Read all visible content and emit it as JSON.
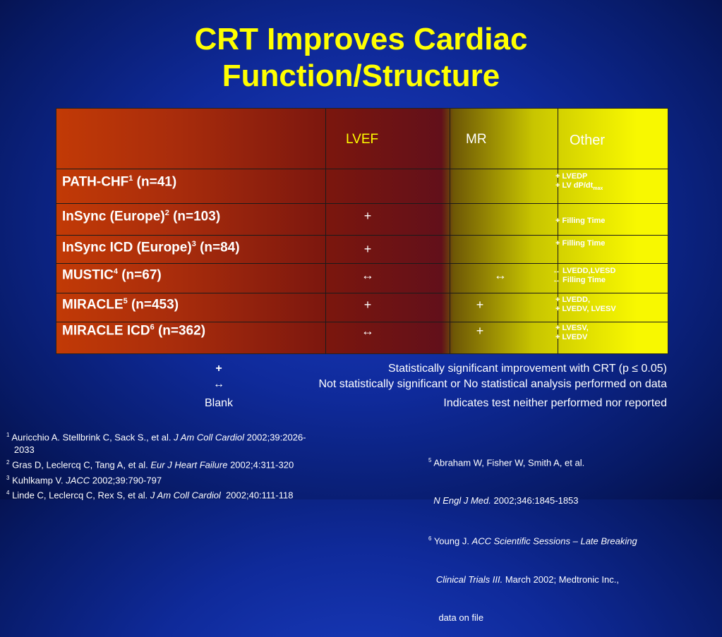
{
  "title_line1": "CRT Improves Cardiac",
  "title_line2": "Function/Structure",
  "table": {
    "headers": {
      "lvef": "LVEF",
      "mr": "MR",
      "other": "Other"
    },
    "rows": [
      {
        "name": "PATH-CHF",
        "sup": "1",
        "n": " (n=41)",
        "lvef": "",
        "mr": "",
        "other1": "+ LVEDP",
        "other2": "+ LV dP/dt",
        "other2_sub": "max"
      },
      {
        "name": "InSync (Europe)",
        "sup": "2",
        "n": " (n=103)",
        "lvef": "+",
        "mr": "",
        "other1": "+ Filling Time",
        "other2": ""
      },
      {
        "name": "InSync ICD (Europe)",
        "sup": "3",
        "n": " (n=84)",
        "lvef": "+",
        "mr": "",
        "other1": "+ Filling Time",
        "other2": ""
      },
      {
        "name": "MUSTIC",
        "sup": "4",
        "n": " (n=67)",
        "lvef": "↔",
        "mr": "↔",
        "other1": "↔ LVEDD,LVESD",
        "other2": "↔ Filling Time"
      },
      {
        "name": "MIRACLE",
        "sup": "5",
        "n": " (n=453)",
        "lvef": "+",
        "mr": "+",
        "other1": "+ LVEDD,",
        "other2": "+ LVEDV, LVESV"
      },
      {
        "name": "MIRACLE ICD",
        "sup": "6",
        "n": " (n=362)",
        "lvef": "↔",
        "mr": "+",
        "other1": "+ LVESV,",
        "other2": "+ LVEDV"
      }
    ]
  },
  "legend": [
    {
      "symbol": "+",
      "text": "Statistically significant improvement with CRT (p ≤ 0.05)"
    },
    {
      "symbol": "↔",
      "text": "Not statistically significant or No statistical analysis performed on data"
    },
    {
      "symbol": "Blank",
      "text": "Indicates test neither performed nor reported"
    }
  ],
  "refs_left": [
    {
      "sup": "1",
      "pre": " Auricchio A. Stellbrink C, Sack S., et al. ",
      "journal": "J Am Coll Cardiol",
      "post": " 2002;39:2026-"
    },
    {
      "sup": "",
      "pre": "   2033",
      "journal": "",
      "post": ""
    },
    {
      "sup": "2",
      "pre": " Gras D, Leclercq C, Tang A, et al. ",
      "journal": "Eur J Heart Failure",
      "post": " 2002;4:311-320"
    },
    {
      "sup": "3",
      "pre": " Kuhlkamp V. ",
      "journal": "JACC",
      "post": " 2002;39:790-797"
    },
    {
      "sup": "4",
      "pre": " Linde C, Leclercq C, Rex S, et al. ",
      "journal": "J Am Coll Cardiol",
      "post": "  2002;40:111-118"
    }
  ],
  "refs_right": [
    {
      "sup": "5",
      "pre": " Abraham W, Fisher W, Smith A, et al.",
      "journal": "",
      "post": ""
    },
    {
      "sup": "",
      "pre": "  ",
      "journal": "N Engl J Med.",
      "post": " 2002;346:1845-1853"
    },
    {
      "sup": "6",
      "pre": " Young J. ",
      "journal": "ACC Scientific Sessions – Late Breaking",
      "post": ""
    },
    {
      "sup": "",
      "pre": "   ",
      "journal": "Clinical Trials III.",
      "post": " March 2002; Medtronic Inc.,"
    },
    {
      "sup": "",
      "pre": "    data on file",
      "journal": "",
      "post": ""
    }
  ]
}
